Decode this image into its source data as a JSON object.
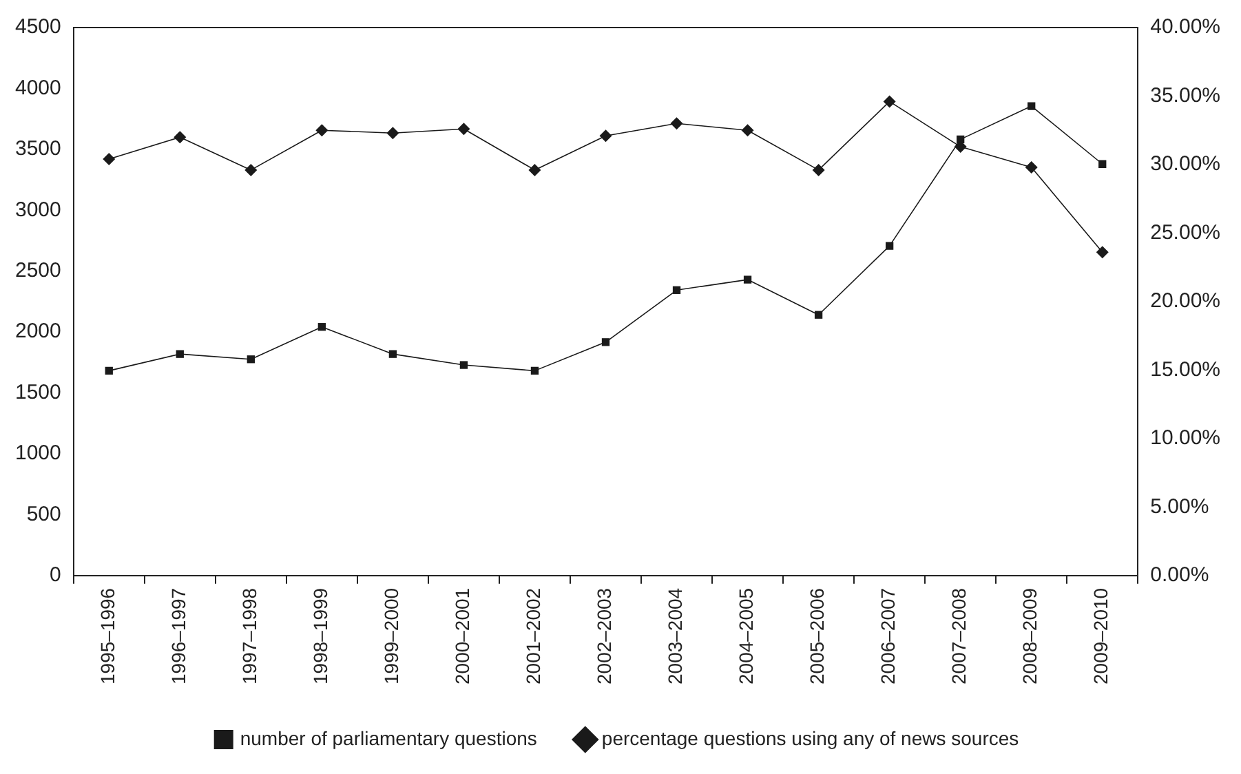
{
  "chart_data": {
    "type": "line",
    "categories": [
      "1995–1996",
      "1996–1997",
      "1997–1998",
      "1998–1999",
      "1999–2000",
      "2000–2001",
      "2001–2002",
      "2002–2003",
      "2003–2004",
      "2004–2005",
      "2005–2006",
      "2006–2007",
      "2007–2008",
      "2008–2009",
      "2009–2010"
    ],
    "series": [
      {
        "name": "number of parliamentary questions",
        "color": "#1a1a1a",
        "marker": "square",
        "values": [
          1682,
          1819,
          1776,
          2042,
          1819,
          1729,
          1682,
          1917,
          2344,
          2430,
          2141,
          2707,
          3582,
          3855,
          3379
        ]
      },
      {
        "name": "percentage questions using any of news sources",
        "color": "#1a1a1a",
        "marker": "diamond",
        "axis": "y2",
        "values": [
          30.4,
          32.0,
          29.6,
          32.5,
          32.3,
          32.6,
          29.6,
          32.1,
          33.0,
          32.5,
          29.6,
          34.6,
          31.3,
          29.8,
          23.6
        ]
      }
    ],
    "ylim": [
      0,
      4500
    ],
    "yticks": [
      0,
      500,
      1000,
      1500,
      2000,
      2500,
      3000,
      3500,
      4000,
      4500
    ],
    "y2lim": [
      0,
      40
    ],
    "y2ticks": [
      {
        "value": 0,
        "label": "0.00%"
      },
      {
        "value": 5,
        "label": "5.00%"
      },
      {
        "value": 10,
        "label": "10.00%"
      },
      {
        "value": 15,
        "label": "15.00%"
      },
      {
        "value": 20,
        "label": "20.00%"
      },
      {
        "value": 25,
        "label": "25.00%"
      },
      {
        "value": 30,
        "label": "30.00%"
      },
      {
        "value": 35,
        "label": "35.00%"
      },
      {
        "value": 40,
        "label": "40.00%"
      }
    ],
    "grid": false,
    "legend": "bottom",
    "line_style": "solid"
  }
}
